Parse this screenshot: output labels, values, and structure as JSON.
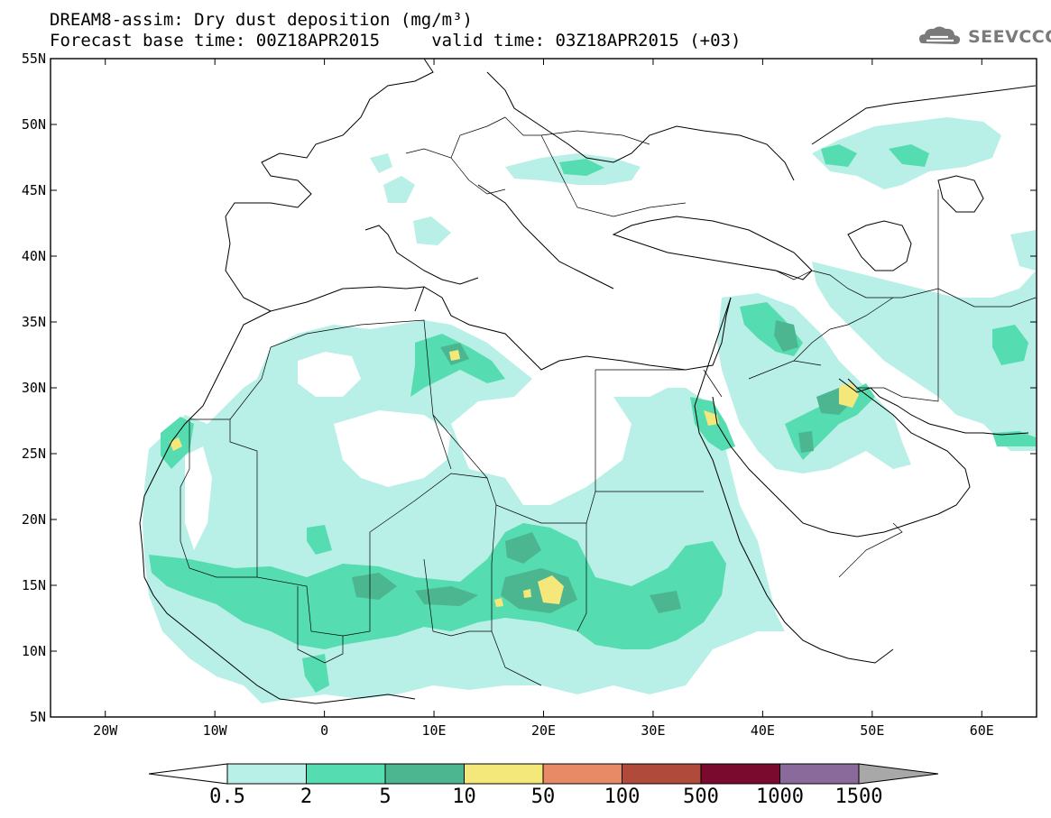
{
  "title": {
    "line1": "DREAM8-assim: Dry dust deposition (mg/m³)",
    "line2": "Forecast base time: 00Z18APR2015     valid time: 03Z18APR2015 (+03)"
  },
  "logo": {
    "text": "SEEVCCC",
    "icon": "cloud-icon"
  },
  "map": {
    "lat_range": [
      5,
      55
    ],
    "lon_range": [
      -25,
      65
    ],
    "lat_labels": [
      "55N",
      "50N",
      "45N",
      "40N",
      "35N",
      "30N",
      "25N",
      "20N",
      "15N",
      "10N",
      "5N"
    ],
    "lon_labels": [
      "20W",
      "10W",
      "0",
      "10E",
      "20E",
      "30E",
      "40E",
      "50E",
      "60E"
    ]
  },
  "colorbar": {
    "labels": [
      "0.5",
      "2",
      "5",
      "10",
      "50",
      "100",
      "500",
      "1000",
      "1500"
    ],
    "colors": [
      "#b8efe6",
      "#55dcb0",
      "#4cb690",
      "#f5e87a",
      "#e88a66",
      "#b04a3a",
      "#7a0a2e",
      "#8a6a9a",
      "#a8a8a8"
    ]
  }
}
